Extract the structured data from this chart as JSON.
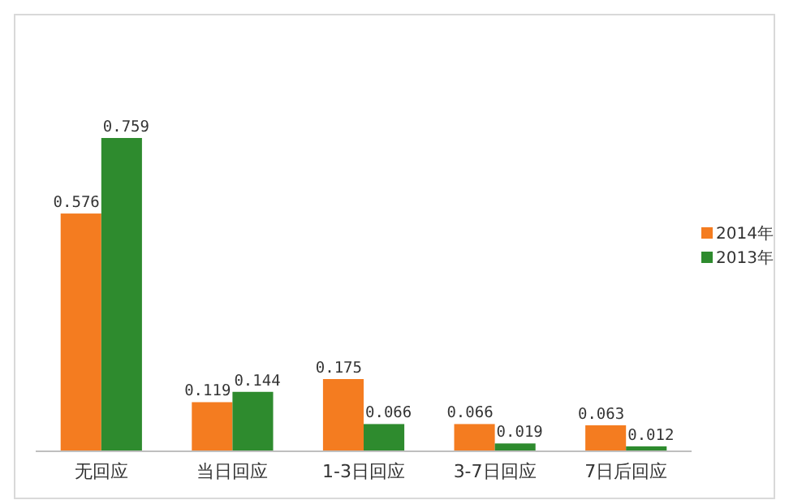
{
  "chart_data": {
    "type": "bar",
    "categories": [
      "无回应",
      "当日回应",
      "1-3日回应",
      "3-7日回应",
      "7日后回应"
    ],
    "series": [
      {
        "name": "2014年",
        "color": "#f47c20",
        "values": [
          0.576,
          0.119,
          0.175,
          0.066,
          0.063
        ]
      },
      {
        "name": "2013年",
        "color": "#2e8b2e",
        "values": [
          0.759,
          0.144,
          0.066,
          0.019,
          0.012
        ]
      }
    ],
    "data_labels": true,
    "legend": "right"
  }
}
